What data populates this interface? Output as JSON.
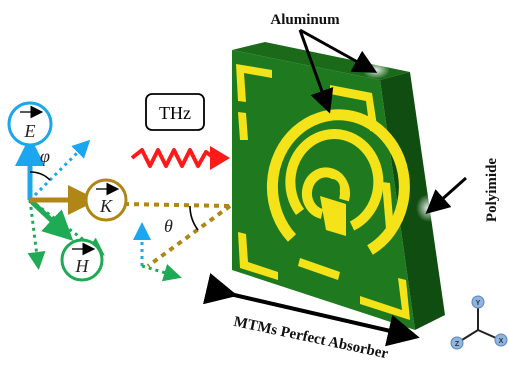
{
  "labels": {
    "aluminum": "Aluminum",
    "polyimide": "Polyimide",
    "thz": "THz",
    "absorber": "MTMs Perfect Absorber",
    "e_vector": "E",
    "h_vector": "H",
    "k_vector": "K",
    "phi": "φ",
    "theta": "θ",
    "axis_x": "X",
    "axis_y": "Y",
    "axis_z": "Z"
  },
  "colors": {
    "substrate_front": "#1f7a1f",
    "substrate_side": "#0f4d10",
    "metal": "#f5e31a",
    "wave": "#ff1a1a",
    "e_field": "#1aa7ef",
    "h_field": "#1faa55",
    "k_vector": "#b08616",
    "axis_ball": "#8fb4df"
  },
  "icons": [
    "thz-wave-icon",
    "axes-icon"
  ]
}
